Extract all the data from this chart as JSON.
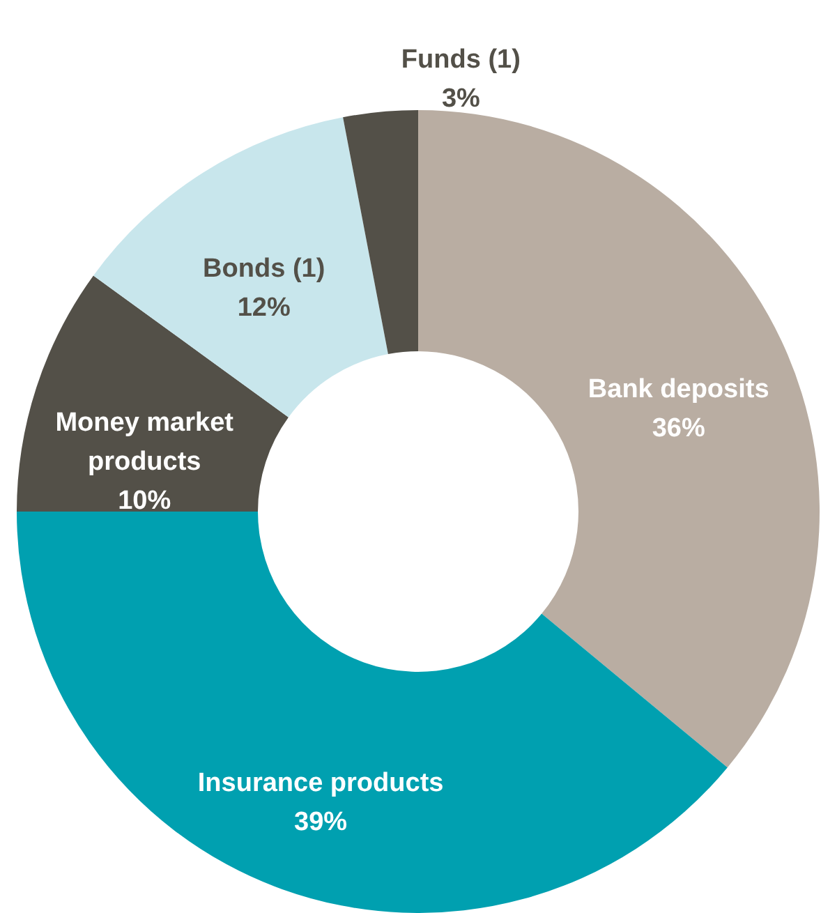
{
  "chart_data": {
    "type": "donut",
    "categories": [
      "Bank deposits",
      "Insurance products",
      "Money market products",
      "Bonds (1)",
      "Funds (1)"
    ],
    "values": [
      36,
      39,
      10,
      12,
      3
    ],
    "colors": [
      "#b9ada2",
      "#00a0b0",
      "#535048",
      "#c8e6ec",
      "#535048"
    ],
    "value_labels": [
      "36%",
      "39%",
      "10%",
      "12%",
      "3%"
    ]
  }
}
